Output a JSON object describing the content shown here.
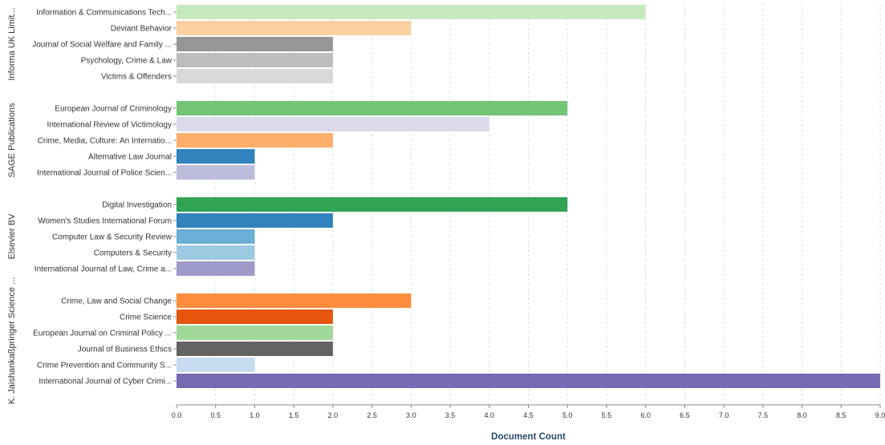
{
  "chart_data": {
    "type": "bar",
    "orientation": "horizontal",
    "xlabel": "Document Count",
    "xlim": [
      0,
      9
    ],
    "xticks": [
      "0.0",
      "0.5",
      "1.0",
      "1.5",
      "2.0",
      "2.5",
      "3.0",
      "3.5",
      "4.0",
      "4.5",
      "5.0",
      "5.5",
      "6.0",
      "6.5",
      "7.0",
      "7.5",
      "8.0",
      "8.5",
      "9.0"
    ],
    "grid": true,
    "facets": [
      {
        "name": "Informa UK Limit...",
        "bars": [
          {
            "label": "Information & Communications Tech...",
            "value": 6,
            "color": "#c7e9c0"
          },
          {
            "label": "Deviant Behavior",
            "value": 3,
            "color": "#fdd0a2"
          },
          {
            "label": "Journal of Social Welfare and Family ...",
            "value": 2,
            "color": "#969696"
          },
          {
            "label": "Psychology, Crime & Law",
            "value": 2,
            "color": "#bdbdbd"
          },
          {
            "label": "Victims & Offenders",
            "value": 2,
            "color": "#d9d9d9"
          }
        ]
      },
      {
        "name": "SAGE Publications",
        "bars": [
          {
            "label": "European Journal of Criminology",
            "value": 5,
            "color": "#74c476"
          },
          {
            "label": "International Review of Victimology",
            "value": 4,
            "color": "#dadaeb"
          },
          {
            "label": "Crime, Media, Culture: An Internatio...",
            "value": 2,
            "color": "#fdae6b"
          },
          {
            "label": "Alternative Law Journal",
            "value": 1,
            "color": "#3182bd"
          },
          {
            "label": "International Journal of Police Scien...",
            "value": 1,
            "color": "#bcbddc"
          }
        ]
      },
      {
        "name": "Elsevier BV",
        "bars": [
          {
            "label": "Digital Investigation",
            "value": 5,
            "color": "#31a354"
          },
          {
            "label": "Women's Studies International Forum",
            "value": 2,
            "color": "#3182bd"
          },
          {
            "label": "Computer Law & Security Review",
            "value": 1,
            "color": "#6baed6"
          },
          {
            "label": "Computers & Security",
            "value": 1,
            "color": "#9ecae1"
          },
          {
            "label": "International Journal of Law, Crime a...",
            "value": 1,
            "color": "#9e9ac8"
          }
        ]
      },
      {
        "name": "K. Jaishankaßpringer Science ...",
        "bars": [
          {
            "label": "Crime, Law and Social Change",
            "value": 3,
            "color": "#fd8d3c"
          },
          {
            "label": "Crime Science",
            "value": 2,
            "color": "#e6550d"
          },
          {
            "label": "European Journal on Criminal Policy ...",
            "value": 2,
            "color": "#a1d99b"
          },
          {
            "label": "Journal of Business Ethics",
            "value": 2,
            "color": "#636363"
          },
          {
            "label": "Crime Prevention and Community S...",
            "value": 1,
            "color": "#c6dbef"
          },
          {
            "label": "International Journal of Cyber Crimi...",
            "value": 9,
            "color": "#756bb1"
          }
        ]
      }
    ]
  }
}
